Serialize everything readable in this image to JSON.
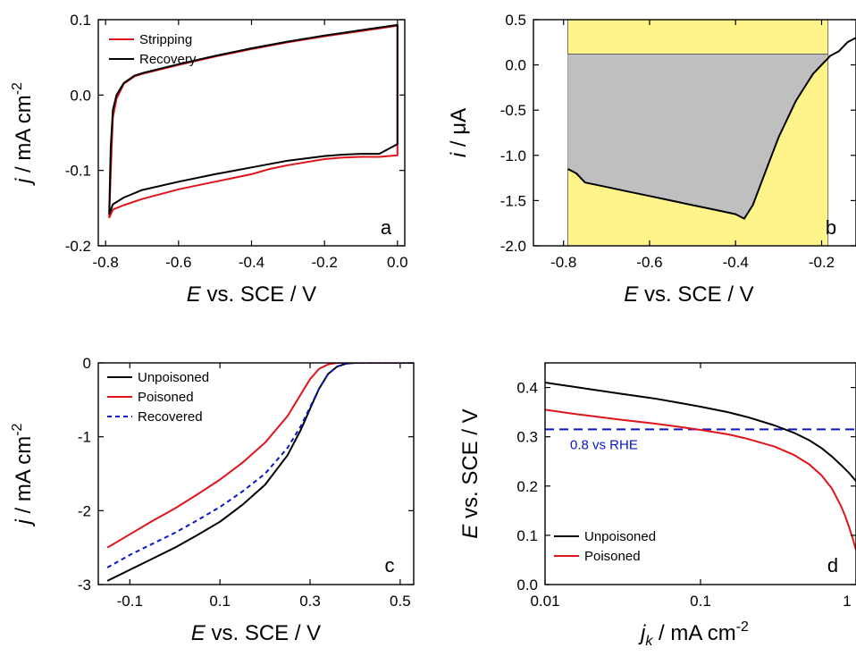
{
  "colors": {
    "red": "#e0141b",
    "black": "#000000",
    "blue": "#0a16c8",
    "yellow_fill": "#fff48a",
    "gray_fill": "#bfbfbf"
  },
  "chart_data": [
    {
      "panel": "a",
      "type": "line",
      "xlabel": {
        "italic": "E",
        "rest": " vs. SCE / V"
      },
      "ylabel": {
        "italic": "j",
        "rest": " / mA cm",
        "sup": "-2"
      },
      "xlim": [
        -0.82,
        0.02
      ],
      "ylim": [
        -0.2,
        0.1
      ],
      "xticks": [
        -0.8,
        -0.6,
        -0.4,
        -0.2,
        0.0
      ],
      "xtick_labels": [
        "-0.8",
        "-0.6",
        "-0.4",
        "-0.2",
        "0.0"
      ],
      "yticks": [
        -0.2,
        -0.1,
        0.0,
        0.1
      ],
      "ytick_labels": [
        "-0.2",
        "-0.1",
        "0.0",
        "0.1"
      ],
      "legend_position": "top-left",
      "series": [
        {
          "name": "Stripping",
          "color": "red",
          "x": [
            -0.79,
            -0.785,
            -0.78,
            -0.77,
            -0.75,
            -0.72,
            -0.7,
            -0.65,
            -0.6,
            -0.5,
            -0.4,
            -0.3,
            -0.2,
            -0.1,
            0.0,
            0.0,
            -0.05,
            -0.1,
            -0.15,
            -0.2,
            -0.3,
            -0.35,
            -0.4,
            -0.5,
            -0.6,
            -0.7,
            -0.75,
            -0.78,
            -0.79
          ],
          "y": [
            -0.163,
            -0.09,
            -0.03,
            -0.005,
            0.015,
            0.025,
            0.028,
            0.034,
            0.04,
            0.051,
            0.061,
            0.07,
            0.078,
            0.085,
            0.092,
            -0.08,
            -0.082,
            -0.082,
            -0.083,
            -0.085,
            -0.093,
            -0.098,
            -0.105,
            -0.115,
            -0.125,
            -0.138,
            -0.146,
            -0.152,
            -0.163
          ]
        },
        {
          "name": "Recovery",
          "color": "black",
          "x": [
            -0.79,
            -0.786,
            -0.78,
            -0.77,
            -0.75,
            -0.72,
            -0.7,
            -0.65,
            -0.6,
            -0.5,
            -0.4,
            -0.3,
            -0.2,
            -0.1,
            0.0,
            0.0,
            -0.05,
            -0.1,
            -0.15,
            -0.2,
            -0.3,
            -0.4,
            -0.5,
            -0.6,
            -0.7,
            -0.75,
            -0.78,
            -0.79
          ],
          "y": [
            -0.158,
            -0.07,
            -0.02,
            0.0,
            0.016,
            0.026,
            0.029,
            0.035,
            0.041,
            0.052,
            0.062,
            0.071,
            0.079,
            0.086,
            0.093,
            -0.065,
            -0.078,
            -0.078,
            -0.079,
            -0.081,
            -0.087,
            -0.096,
            -0.105,
            -0.115,
            -0.126,
            -0.136,
            -0.145,
            -0.158
          ]
        }
      ]
    },
    {
      "panel": "b",
      "type": "area",
      "xlabel": {
        "italic": "E",
        "rest": " vs. SCE / V"
      },
      "ylabel": {
        "italic": "i",
        "rest": " / μA"
      },
      "xlim": [
        -0.87,
        -0.12
      ],
      "ylim": [
        -2.0,
        0.5
      ],
      "xticks": [
        -0.8,
        -0.6,
        -0.4,
        -0.2
      ],
      "xtick_labels": [
        "-0.8",
        "-0.6",
        "-0.4",
        "-0.2"
      ],
      "yticks": [
        -2.0,
        -1.5,
        -1.0,
        -0.5,
        0.0,
        0.5
      ],
      "ytick_labels": [
        "-2.0",
        "-1.5",
        "-1.0",
        "-0.5",
        "0.0",
        "0.5"
      ],
      "shaded_region": {
        "x_from": -0.79,
        "x_to": -0.185,
        "baseline": 0.12
      },
      "series": [
        {
          "color": "black",
          "x": [
            -0.79,
            -0.77,
            -0.75,
            -0.7,
            -0.65,
            -0.6,
            -0.55,
            -0.5,
            -0.45,
            -0.4,
            -0.38,
            -0.36,
            -0.34,
            -0.32,
            -0.3,
            -0.28,
            -0.26,
            -0.24,
            -0.22,
            -0.2,
            -0.18,
            -0.16,
            -0.14,
            -0.12
          ],
          "y": [
            -1.15,
            -1.2,
            -1.3,
            -1.35,
            -1.4,
            -1.45,
            -1.5,
            -1.55,
            -1.6,
            -1.65,
            -1.7,
            -1.55,
            -1.3,
            -1.05,
            -0.8,
            -0.6,
            -0.4,
            -0.25,
            -0.1,
            0.0,
            0.1,
            0.15,
            0.25,
            0.3
          ]
        }
      ]
    },
    {
      "panel": "c",
      "type": "line",
      "xlabel": {
        "italic": "E",
        "rest": " vs. SCE / V"
      },
      "ylabel": {
        "italic": "j",
        "rest": " / mA cm",
        "sup": "-2"
      },
      "xlim": [
        -0.17,
        0.53
      ],
      "ylim": [
        -3.0,
        0.0
      ],
      "xticks": [
        -0.1,
        0.1,
        0.3,
        0.5
      ],
      "xtick_labels": [
        "-0.1",
        "0.1",
        "0.3",
        "0.5"
      ],
      "yticks": [
        -3,
        -2,
        -1,
        0
      ],
      "ytick_labels": [
        "-3",
        "-2",
        "-1",
        "0"
      ],
      "legend_position": "top-left",
      "series": [
        {
          "name": "Unpoisoned",
          "color": "black",
          "dash": "solid",
          "x": [
            -0.15,
            -0.1,
            -0.05,
            0.0,
            0.05,
            0.1,
            0.15,
            0.2,
            0.25,
            0.28,
            0.3,
            0.32,
            0.34,
            0.36,
            0.38,
            0.4,
            0.45,
            0.5,
            0.53
          ],
          "y": [
            -2.95,
            -2.8,
            -2.65,
            -2.5,
            -2.33,
            -2.15,
            -1.92,
            -1.65,
            -1.25,
            -0.9,
            -0.62,
            -0.35,
            -0.15,
            -0.05,
            -0.01,
            0.0,
            0.0,
            0.0,
            0.0
          ]
        },
        {
          "name": "Poisoned",
          "color": "red",
          "dash": "solid",
          "x": [
            -0.15,
            -0.1,
            -0.05,
            0.0,
            0.05,
            0.1,
            0.15,
            0.2,
            0.25,
            0.28,
            0.3,
            0.32,
            0.34,
            0.36,
            0.4,
            0.45,
            0.5,
            0.53
          ],
          "y": [
            -2.5,
            -2.32,
            -2.14,
            -1.97,
            -1.78,
            -1.58,
            -1.35,
            -1.08,
            -0.72,
            -0.42,
            -0.22,
            -0.08,
            -0.02,
            0.0,
            0.0,
            0.0,
            0.0,
            0.0
          ]
        },
        {
          "name": "Recovered",
          "color": "blue",
          "dash": "dashed",
          "x": [
            -0.15,
            -0.1,
            -0.05,
            0.0,
            0.05,
            0.1,
            0.15,
            0.2,
            0.25,
            0.28,
            0.3,
            0.32,
            0.34,
            0.36,
            0.38,
            0.4,
            0.45,
            0.5,
            0.53
          ],
          "y": [
            -2.77,
            -2.6,
            -2.45,
            -2.3,
            -2.13,
            -1.95,
            -1.74,
            -1.5,
            -1.15,
            -0.85,
            -0.6,
            -0.35,
            -0.15,
            -0.05,
            -0.01,
            0.0,
            0.0,
            0.0,
            0.0
          ]
        }
      ]
    },
    {
      "panel": "d",
      "type": "line",
      "xscale": "log",
      "xlabel": {
        "italic": "j",
        "sub": "k",
        "rest": " / mA cm",
        "sup": "-2"
      },
      "ylabel": {
        "italic": "E",
        "rest": " vs. SCE / V"
      },
      "xlim": [
        0.01,
        1.0
      ],
      "ylim": [
        0.0,
        0.45
      ],
      "xticks": [
        0.01,
        0.1,
        1
      ],
      "xtick_labels": [
        "0.01",
        "0.1",
        "1"
      ],
      "yticks": [
        0.0,
        0.1,
        0.2,
        0.3,
        0.4
      ],
      "ytick_labels": [
        "0.0",
        "0.1",
        "0.2",
        "0.3",
        "0.4"
      ],
      "legend_position": "bottom-left",
      "reference_line": {
        "y": 0.315,
        "label": "0.8 vs RHE",
        "color": "blue",
        "dash": "dashed"
      },
      "series": [
        {
          "name": "Unpoisoned",
          "color": "black",
          "x": [
            0.01,
            0.015,
            0.02,
            0.03,
            0.05,
            0.07,
            0.1,
            0.15,
            0.2,
            0.3,
            0.4,
            0.5,
            0.6,
            0.7,
            0.8,
            0.9,
            1.0
          ],
          "y": [
            0.41,
            0.402,
            0.396,
            0.388,
            0.378,
            0.37,
            0.361,
            0.35,
            0.34,
            0.323,
            0.308,
            0.293,
            0.277,
            0.26,
            0.243,
            0.227,
            0.21
          ]
        },
        {
          "name": "Poisoned",
          "color": "red",
          "x": [
            0.01,
            0.015,
            0.02,
            0.03,
            0.05,
            0.07,
            0.1,
            0.15,
            0.2,
            0.3,
            0.4,
            0.5,
            0.6,
            0.7,
            0.8,
            0.85,
            0.9,
            0.95,
            1.0
          ],
          "y": [
            0.355,
            0.347,
            0.342,
            0.335,
            0.327,
            0.321,
            0.314,
            0.305,
            0.296,
            0.28,
            0.263,
            0.244,
            0.222,
            0.195,
            0.16,
            0.14,
            0.118,
            0.095,
            0.07
          ]
        }
      ]
    }
  ]
}
